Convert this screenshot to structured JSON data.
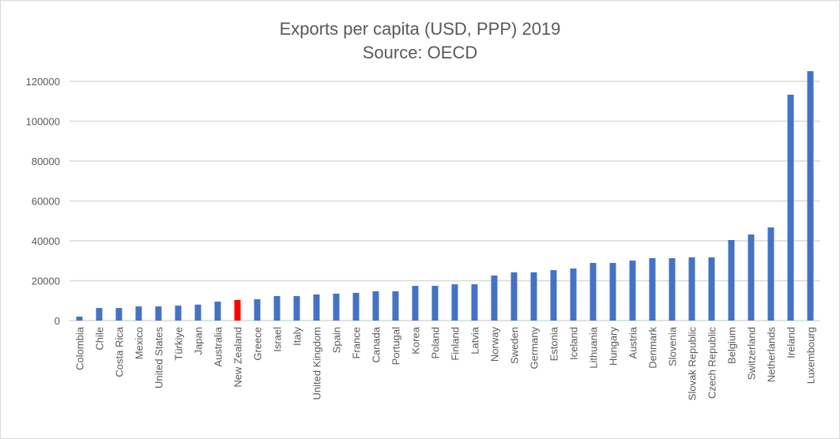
{
  "chart_data": {
    "type": "bar",
    "title": "Exports per capita (USD, PPP) 2019",
    "subtitle": "Source: OECD",
    "xlabel": "",
    "ylabel": "",
    "ylim": [
      0,
      120000
    ],
    "yticks": [
      0,
      20000,
      40000,
      60000,
      80000,
      100000,
      120000
    ],
    "ytick_labels": [
      "0",
      "20000",
      "40000",
      "60000",
      "80000",
      "100000",
      "120000"
    ],
    "grid": true,
    "legend": "none",
    "bar_color": "#4472C4",
    "highlight_color": "#FF0000",
    "highlight_category": "New Zealand",
    "categories": [
      "Colombia",
      "Chile",
      "Costa Rica",
      "Mexico",
      "United States",
      "Türkiye",
      "Japan",
      "Australia",
      "New Zealand",
      "Greece",
      "Israel",
      "Italy",
      "United Kingdom",
      "Spain",
      "France",
      "Canada",
      "Portugal",
      "Korea",
      "Poland",
      "Finland",
      "Latvia",
      "Norway",
      "Sweden",
      "Germany",
      "Estonia",
      "Iceland",
      "Lithuania",
      "Hungary",
      "Austria",
      "Denmark",
      "Slovenia",
      "Slovak Republic",
      "Czech Republic",
      "Belgium",
      "Switzerland",
      "Netherlands",
      "Ireland",
      "Luxembourg"
    ],
    "values": [
      2000,
      6300,
      6300,
      7100,
      7100,
      7500,
      8000,
      9500,
      10300,
      10700,
      12300,
      12300,
      13100,
      13500,
      13900,
      14700,
      14700,
      17400,
      17400,
      18200,
      18200,
      22600,
      24200,
      24200,
      25300,
      26100,
      28900,
      28900,
      30100,
      31300,
      31300,
      31700,
      31700,
      40400,
      43200,
      46700,
      113300,
      125100
    ]
  }
}
